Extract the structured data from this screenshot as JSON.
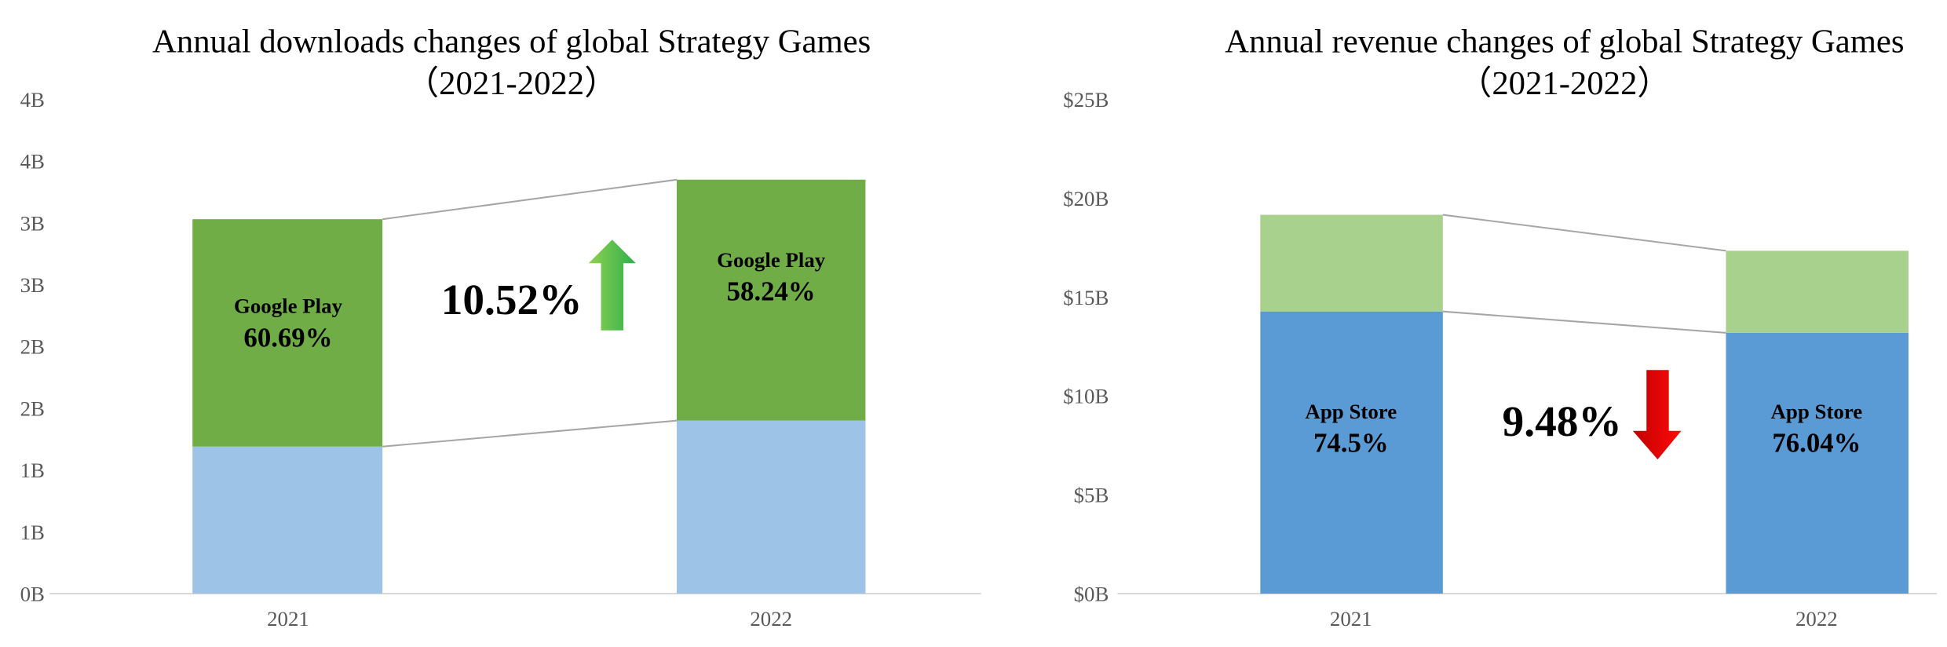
{
  "chart_data": [
    {
      "type": "bar",
      "stacked": true,
      "title": "Annual downloads changes of global Strategy Games",
      "subtitle": "（2021-2022）",
      "categories": [
        "2021",
        "2022"
      ],
      "ylim": [
        0,
        4
      ],
      "yticks": [
        0,
        0.5,
        1,
        1.5,
        2,
        2.5,
        3,
        3.5,
        4
      ],
      "ytick_labels": [
        "0B",
        "1B",
        "1B",
        "2B",
        "2B",
        "3B",
        "3B",
        "4B",
        "4B"
      ],
      "grid": false,
      "series": [
        {
          "values": [
            1.19,
            1.4
          ],
          "color": "#9DC3E6"
        },
        {
          "name": "Google Play",
          "values": [
            1.84,
            1.95
          ],
          "color": "#70AD47"
        }
      ],
      "data_labels": [
        {
          "name": "Google Play",
          "value": "60.69%"
        },
        {
          "name": "Google Play",
          "value": "58.24%"
        }
      ],
      "change": {
        "value": "10.52%",
        "direction": "up",
        "arrow_color": "#4CB648"
      },
      "connector_color": "#A6A6A6"
    },
    {
      "type": "bar",
      "stacked": true,
      "title": "Annual revenue changes of global Strategy Games",
      "subtitle": "（2021-2022）",
      "categories": [
        "2021",
        "2022"
      ],
      "ylim": [
        0,
        25
      ],
      "yticks": [
        0,
        5,
        10,
        15,
        20,
        25
      ],
      "ytick_labels": [
        "$0B",
        "$5B",
        "$10B",
        "$15B",
        "$20B",
        "$25B"
      ],
      "grid": false,
      "series": [
        {
          "name": "App Store",
          "values": [
            14.27,
            13.19
          ],
          "color": "#5B9BD5"
        },
        {
          "values": [
            4.89,
            4.15
          ],
          "color": "#A9D18E"
        }
      ],
      "data_labels": [
        {
          "name": "App Store",
          "value": "74.5%"
        },
        {
          "name": "App Store",
          "value": "76.04%"
        }
      ],
      "change": {
        "value": "9.48%",
        "direction": "down",
        "arrow_color": "#E00000"
      },
      "connector_color": "#A6A6A6"
    }
  ]
}
